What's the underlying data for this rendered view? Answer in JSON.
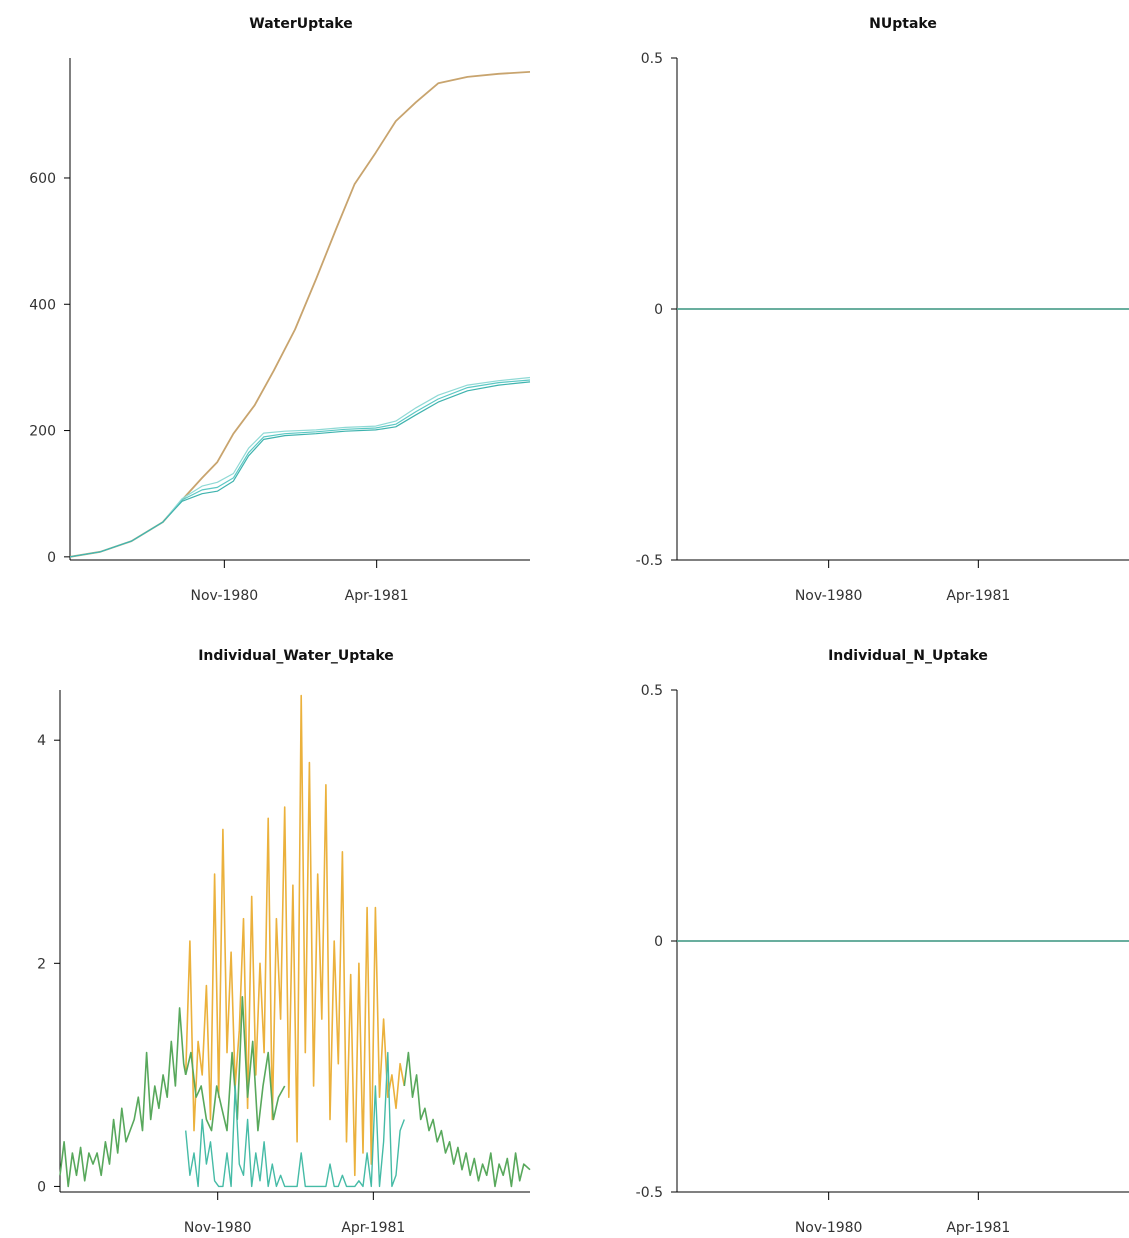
{
  "chart_data": [
    {
      "type": "line",
      "title": "WaterUptake",
      "xlabel": "",
      "ylabel": "",
      "x_ticks": [
        {
          "date": "1980-11-01",
          "label": "Nov-1980"
        },
        {
          "date": "1981-04-01",
          "label": "Apr-1981"
        }
      ],
      "y_ticks": [
        {
          "value": 0,
          "label": "0"
        },
        {
          "value": 200,
          "label": "200"
        },
        {
          "value": 400,
          "label": "400"
        },
        {
          "value": 600,
          "label": "600"
        }
      ],
      "xlim": [
        "1980-06-01",
        "1981-08-31"
      ],
      "ylim": [
        -5,
        790
      ],
      "series": [
        {
          "color": "#c8a46e",
          "width": 1.8,
          "x": [
            "1980-06-01",
            "1980-07-01",
            "1980-08-01",
            "1980-09-01",
            "1980-09-20",
            "1980-10-10",
            "1980-10-25",
            "1980-11-10",
            "1980-12-01",
            "1980-12-20",
            "1981-01-10",
            "1981-01-31",
            "1981-02-20",
            "1981-03-10",
            "1981-03-31",
            "1981-04-20",
            "1981-05-10",
            "1981-06-01",
            "1981-06-30",
            "1981-07-31",
            "1981-08-31"
          ],
          "y": [
            0,
            8,
            25,
            55,
            90,
            125,
            150,
            195,
            240,
            295,
            360,
            440,
            520,
            590,
            640,
            690,
            720,
            750,
            760,
            765,
            768
          ]
        },
        {
          "color": "#5bc8c4",
          "width": 1.2,
          "x": [
            "1980-06-01",
            "1980-07-01",
            "1980-08-01",
            "1980-09-01",
            "1980-09-20",
            "1980-10-10",
            "1980-10-25",
            "1980-11-10",
            "1980-11-25",
            "1980-12-10",
            "1980-12-31",
            "1981-01-31",
            "1981-03-01",
            "1981-03-31",
            "1981-04-20",
            "1981-05-10",
            "1981-06-01",
            "1981-06-30",
            "1981-07-31",
            "1981-08-31"
          ],
          "y": [
            0,
            8,
            25,
            55,
            90,
            106,
            110,
            125,
            165,
            190,
            195,
            198,
            202,
            204,
            210,
            230,
            250,
            268,
            276,
            280
          ]
        },
        {
          "color": "#8fd9d5",
          "width": 1.2,
          "x": [
            "1980-06-01",
            "1980-07-01",
            "1980-08-01",
            "1980-09-01",
            "1980-09-20",
            "1980-10-10",
            "1980-10-25",
            "1980-11-10",
            "1980-11-25",
            "1980-12-10",
            "1980-12-31",
            "1981-01-31",
            "1981-03-01",
            "1981-03-31",
            "1981-04-20",
            "1981-05-10",
            "1981-06-01",
            "1981-06-30",
            "1981-07-31",
            "1981-08-31"
          ],
          "y": [
            0,
            8,
            25,
            55,
            92,
            112,
            118,
            132,
            172,
            196,
            199,
            201,
            205,
            207,
            215,
            236,
            256,
            272,
            279,
            284
          ]
        },
        {
          "color": "#3fb3ae",
          "width": 1.2,
          "x": [
            "1980-06-01",
            "1980-07-01",
            "1980-08-01",
            "1980-09-01",
            "1980-09-20",
            "1980-10-10",
            "1980-10-25",
            "1980-11-10",
            "1980-11-25",
            "1980-12-10",
            "1980-12-31",
            "1981-01-31",
            "1981-03-01",
            "1981-03-31",
            "1981-04-20",
            "1981-05-10",
            "1981-06-01",
            "1981-06-30",
            "1981-07-31",
            "1981-08-31"
          ],
          "y": [
            0,
            8,
            25,
            55,
            88,
            100,
            104,
            120,
            160,
            186,
            192,
            195,
            199,
            201,
            206,
            225,
            245,
            263,
            272,
            277
          ]
        }
      ]
    },
    {
      "type": "line",
      "title": "NUptake",
      "xlabel": "",
      "ylabel": "",
      "x_ticks": [
        {
          "date": "1980-11-01",
          "label": "Nov-1980"
        },
        {
          "date": "1981-04-01",
          "label": "Apr-1981"
        }
      ],
      "y_ticks": [
        {
          "value": -0.5,
          "label": "-0.5"
        },
        {
          "value": 0,
          "label": "0"
        },
        {
          "value": 0.5,
          "label": "0.5"
        }
      ],
      "xlim": [
        "1980-06-01",
        "1981-08-31"
      ],
      "ylim": [
        -0.5,
        0.5
      ],
      "series": [
        {
          "color": "#5a8f6f",
          "width": 1.8,
          "x": [
            "1980-06-01",
            "1981-08-31"
          ],
          "y": [
            0,
            0
          ]
        },
        {
          "color": "#4fb0a8",
          "width": 1.0,
          "x": [
            "1980-06-01",
            "1981-08-31"
          ],
          "y": [
            0,
            0
          ]
        }
      ]
    },
    {
      "type": "line",
      "title": "Individual_Water_Uptake",
      "xlabel": "",
      "ylabel": "",
      "x_ticks": [
        {
          "date": "1980-11-01",
          "label": "Nov-1980"
        },
        {
          "date": "1981-04-01",
          "label": "Apr-1981"
        }
      ],
      "y_ticks": [
        {
          "value": 0,
          "label": "0"
        },
        {
          "value": 2,
          "label": "2"
        },
        {
          "value": 4,
          "label": "4"
        }
      ],
      "xlim": [
        "1980-06-01",
        "1981-08-31"
      ],
      "ylim": [
        -0.05,
        4.45
      ],
      "series": [
        {
          "color": "#ebb13c",
          "width": 1.6,
          "x": [
            "1980-10-01",
            "1980-10-05",
            "1980-10-09",
            "1980-10-13",
            "1980-10-17",
            "1980-10-21",
            "1980-10-25",
            "1980-10-29",
            "1980-11-02",
            "1980-11-06",
            "1980-11-10",
            "1980-11-14",
            "1980-11-18",
            "1980-11-22",
            "1980-11-26",
            "1980-11-30",
            "1980-12-04",
            "1980-12-08",
            "1980-12-12",
            "1980-12-16",
            "1980-12-20",
            "1980-12-24",
            "1980-12-28",
            "1981-01-01",
            "1981-01-05",
            "1981-01-09",
            "1981-01-13",
            "1981-01-17",
            "1981-01-21",
            "1981-01-25",
            "1981-01-29",
            "1981-02-02",
            "1981-02-06",
            "1981-02-10",
            "1981-02-14",
            "1981-02-18",
            "1981-02-22",
            "1981-02-26",
            "1981-03-02",
            "1981-03-06",
            "1981-03-10",
            "1981-03-14",
            "1981-03-18",
            "1981-03-22",
            "1981-03-26",
            "1981-03-30",
            "1981-04-03",
            "1981-04-07",
            "1981-04-11",
            "1981-04-15",
            "1981-04-19",
            "1981-04-23",
            "1981-04-27",
            "1981-05-01"
          ],
          "y": [
            1.0,
            2.2,
            0.5,
            1.3,
            1.0,
            1.8,
            0.6,
            2.8,
            0.8,
            3.2,
            1.2,
            2.1,
            0.9,
            1.4,
            2.4,
            0.7,
            2.6,
            1.0,
            2.0,
            1.2,
            3.3,
            0.6,
            2.4,
            1.5,
            3.4,
            0.8,
            2.7,
            0.4,
            4.4,
            1.2,
            3.8,
            0.9,
            2.8,
            1.5,
            3.6,
            0.6,
            2.2,
            1.1,
            3.0,
            0.4,
            1.9,
            0.1,
            2.0,
            0.3,
            2.5,
            0.2,
            2.5,
            0.8,
            1.5,
            0.8,
            1.0,
            0.7,
            1.1,
            0.9
          ]
        },
        {
          "color": "#58a85c",
          "width": 1.6,
          "x": [
            "1980-06-01",
            "1980-06-05",
            "1980-06-09",
            "1980-06-13",
            "1980-06-17",
            "1980-06-21",
            "1980-06-25",
            "1980-06-29",
            "1980-07-03",
            "1980-07-07",
            "1980-07-11",
            "1980-07-15",
            "1980-07-19",
            "1980-07-23",
            "1980-07-27",
            "1980-07-31",
            "1980-08-04",
            "1980-08-08",
            "1980-08-12",
            "1980-08-16",
            "1980-08-20",
            "1980-08-24",
            "1980-08-28",
            "1980-09-01",
            "1980-09-05",
            "1980-09-09",
            "1980-09-13",
            "1980-09-17",
            "1980-09-21",
            "1980-09-25",
            "1980-09-29",
            "1980-10-01"
          ],
          "y": [
            0.1,
            0.4,
            0.0,
            0.3,
            0.1,
            0.35,
            0.05,
            0.3,
            0.2,
            0.3,
            0.1,
            0.4,
            0.2,
            0.6,
            0.3,
            0.7,
            0.4,
            0.5,
            0.6,
            0.8,
            0.5,
            1.2,
            0.6,
            0.9,
            0.7,
            1.0,
            0.8,
            1.3,
            0.9,
            1.6,
            1.1,
            1.0
          ]
        },
        {
          "color": "#58a85c",
          "width": 1.6,
          "x": [
            "1981-05-01",
            "1981-05-05",
            "1981-05-09",
            "1981-05-13",
            "1981-05-17",
            "1981-05-21",
            "1981-05-25",
            "1981-05-29",
            "1981-06-02",
            "1981-06-06",
            "1981-06-10",
            "1981-06-14",
            "1981-06-18",
            "1981-06-22",
            "1981-06-26",
            "1981-06-30",
            "1981-07-04",
            "1981-07-08",
            "1981-07-12",
            "1981-07-16",
            "1981-07-20",
            "1981-07-24",
            "1981-07-28",
            "1981-08-01",
            "1981-08-05",
            "1981-08-09",
            "1981-08-13",
            "1981-08-17",
            "1981-08-21",
            "1981-08-25",
            "1981-08-31"
          ],
          "y": [
            0.9,
            1.2,
            0.8,
            1.0,
            0.6,
            0.7,
            0.5,
            0.6,
            0.4,
            0.5,
            0.3,
            0.4,
            0.2,
            0.35,
            0.15,
            0.3,
            0.1,
            0.25,
            0.05,
            0.2,
            0.1,
            0.3,
            0.0,
            0.2,
            0.1,
            0.25,
            0.0,
            0.3,
            0.05,
            0.2,
            0.15
          ]
        },
        {
          "color": "#58a85c",
          "width": 1.6,
          "x": [
            "1980-10-01",
            "1980-10-06",
            "1980-10-11",
            "1980-10-16",
            "1980-10-21",
            "1980-10-26",
            "1980-10-31",
            "1980-11-05",
            "1980-11-10",
            "1980-11-15",
            "1980-11-20",
            "1980-11-25",
            "1980-11-30",
            "1980-12-05",
            "1980-12-10",
            "1980-12-15",
            "1980-12-20",
            "1980-12-25",
            "1980-12-30",
            "1981-01-05"
          ],
          "y": [
            1.0,
            1.2,
            0.8,
            0.9,
            0.6,
            0.5,
            0.9,
            0.7,
            0.5,
            1.2,
            0.6,
            1.7,
            0.8,
            1.3,
            0.5,
            0.9,
            1.2,
            0.6,
            0.8,
            0.9
          ]
        },
        {
          "color": "#45bba6",
          "width": 1.4,
          "x": [
            "1980-10-01",
            "1980-10-05",
            "1980-10-09",
            "1980-10-13",
            "1980-10-17",
            "1980-10-21",
            "1980-10-25",
            "1980-10-29",
            "1980-11-02",
            "1980-11-06",
            "1980-11-10",
            "1980-11-14",
            "1980-11-18",
            "1980-11-22",
            "1980-11-26",
            "1980-11-30",
            "1980-12-04",
            "1980-12-08",
            "1980-12-12",
            "1980-12-16",
            "1980-12-20",
            "1980-12-24",
            "1980-12-28",
            "1981-01-01",
            "1981-01-05",
            "1981-01-09",
            "1981-01-13",
            "1981-01-17",
            "1981-01-21",
            "1981-01-25",
            "1981-01-29",
            "1981-02-02",
            "1981-02-06",
            "1981-02-10",
            "1981-02-14",
            "1981-02-18",
            "1981-02-22",
            "1981-02-26",
            "1981-03-02",
            "1981-03-06",
            "1981-03-10",
            "1981-03-14",
            "1981-03-18",
            "1981-03-22",
            "1981-03-26",
            "1981-03-30",
            "1981-04-03",
            "1981-04-07",
            "1981-04-11",
            "1981-04-15",
            "1981-04-19",
            "1981-04-23",
            "1981-04-27",
            "1981-05-01"
          ],
          "y": [
            0.5,
            0.1,
            0.3,
            0.0,
            0.6,
            0.2,
            0.4,
            0.05,
            0.0,
            0.0,
            0.3,
            0.0,
            0.9,
            0.2,
            0.1,
            0.6,
            0.0,
            0.3,
            0.05,
            0.4,
            0.0,
            0.2,
            0.0,
            0.1,
            0.0,
            0.0,
            0.0,
            0.0,
            0.3,
            0.0,
            0.0,
            0.0,
            0.0,
            0.0,
            0.0,
            0.2,
            0.0,
            0.0,
            0.1,
            0.0,
            0.0,
            0.0,
            0.05,
            0.0,
            0.3,
            0.0,
            0.9,
            0.0,
            0.4,
            1.2,
            0.0,
            0.1,
            0.5,
            0.6
          ]
        }
      ]
    },
    {
      "type": "line",
      "title": "Individual_N_Uptake",
      "xlabel": "",
      "ylabel": "",
      "x_ticks": [
        {
          "date": "1980-11-01",
          "label": "Nov-1980"
        },
        {
          "date": "1981-04-01",
          "label": "Apr-1981"
        }
      ],
      "y_ticks": [
        {
          "value": -0.5,
          "label": "-0.5"
        },
        {
          "value": 0,
          "label": "0"
        },
        {
          "value": 0.5,
          "label": "0.5"
        }
      ],
      "xlim": [
        "1980-06-01",
        "1981-08-31"
      ],
      "ylim": [
        -0.5,
        0.5
      ],
      "series": [
        {
          "color": "#5a8f6f",
          "width": 1.8,
          "x": [
            "1980-06-01",
            "1981-08-31"
          ],
          "y": [
            0,
            0
          ]
        },
        {
          "color": "#4fb0a8",
          "width": 1.0,
          "x": [
            "1980-06-01",
            "1981-08-31"
          ],
          "y": [
            0,
            0
          ]
        }
      ]
    }
  ]
}
